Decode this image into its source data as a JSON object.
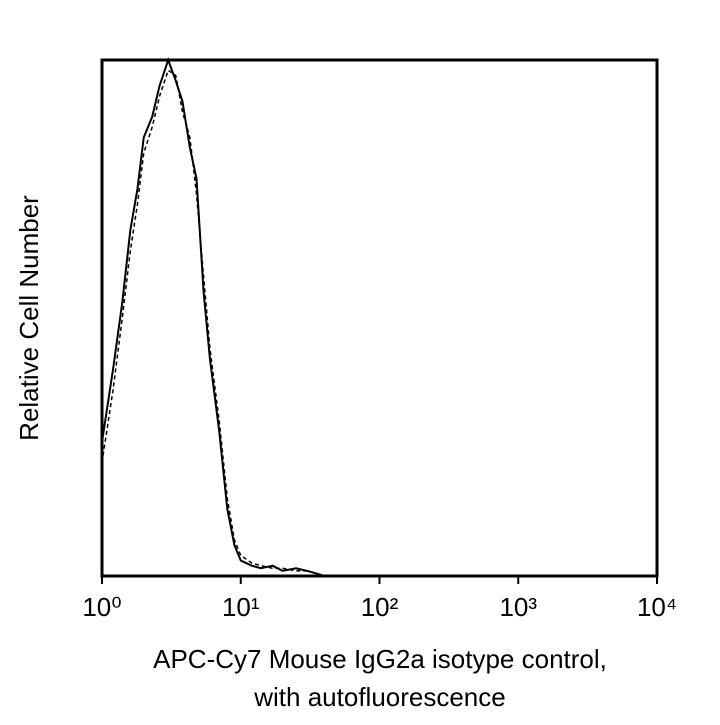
{
  "chart_data": {
    "type": "line",
    "ylabel": "Relative Cell Number",
    "xlabel": [
      "APC-Cy7 Mouse IgG2a isotype control,",
      "with autofluorescence"
    ],
    "xscale": "log",
    "xlim": [
      1,
      10000
    ],
    "xticks": [
      {
        "value": 1,
        "label": "10⁰"
      },
      {
        "value": 10,
        "label": "10¹"
      },
      {
        "value": 100,
        "label": "10²"
      },
      {
        "value": 1000,
        "label": "10³"
      },
      {
        "value": 10000,
        "label": "10⁴"
      }
    ],
    "ylim": [
      0,
      100
    ],
    "x": [
      1,
      1.2,
      1.4,
      1.6,
      1.8,
      2,
      2.3,
      2.6,
      3,
      3.4,
      3.8,
      4.3,
      4.8,
      5.4,
      6,
      7,
      8,
      9,
      10,
      12,
      14,
      17,
      20,
      25,
      30,
      35,
      40
    ],
    "series": [
      {
        "color": "#000000",
        "style": "solid",
        "values": [
          26,
          40,
          53,
          67,
          75,
          85,
          89,
          95,
          100,
          96,
          92,
          83,
          77,
          55,
          42,
          28,
          13,
          6,
          3,
          2,
          1.5,
          2,
          1,
          1.5,
          1,
          0.5,
          0
        ]
      },
      {
        "color": "#000000",
        "style": "dashed",
        "values": [
          22,
          36,
          50,
          63,
          72,
          82,
          87,
          93,
          98,
          97,
          90,
          85,
          74,
          58,
          44,
          30,
          15,
          7,
          4,
          2.5,
          2,
          1.5,
          1.5,
          1,
          1,
          0.5,
          0
        ]
      }
    ]
  }
}
